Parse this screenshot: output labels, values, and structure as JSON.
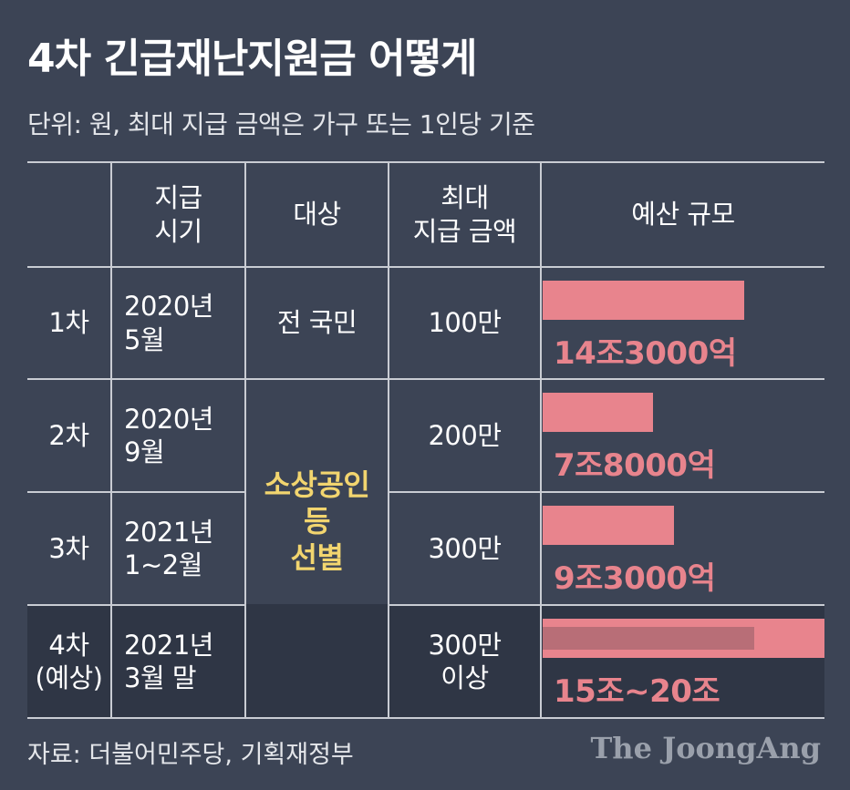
{
  "title": "4차 긴급재난지원금 어떻게",
  "subtitle": "단위: 원, 최대 지급 금액은 가구 또는 1인당 기준",
  "table": {
    "headers": [
      "",
      "지급\n시기",
      "대상",
      "최대\n지급 금액",
      "예산 규모"
    ],
    "rows": [
      {
        "round": "1차",
        "timing": "2020년\n5월",
        "target": "전 국민",
        "max_amount": "100만",
        "budget_label": "14조3000억"
      },
      {
        "round": "2차",
        "timing": "2020년\n9월",
        "target": "",
        "max_amount": "200만",
        "budget_label": "7조8000억"
      },
      {
        "round": "3차",
        "timing": "2021년\n1~2월",
        "target": "",
        "max_amount": "300만",
        "budget_label": "9조3000억"
      },
      {
        "round": "4차\n(예상)",
        "timing": "2021년\n3월 말",
        "target": "",
        "max_amount": "300만\n이상",
        "budget_label": "15조~20조"
      }
    ],
    "merged_target": "소상공인\n등\n선별"
  },
  "chart_data": {
    "type": "bar",
    "orientation": "horizontal",
    "categories": [
      "1차",
      "2차",
      "3차",
      "4차(예상)"
    ],
    "values": [
      14.3,
      7.8,
      9.3,
      20
    ],
    "range_low": [
      null,
      null,
      null,
      15
    ],
    "unit": "조",
    "value_labels": [
      "14조3000억",
      "7조8000억",
      "9조3000억",
      "15조~20조"
    ]
  },
  "source": "자료: 더불어민주당, 기획재정부",
  "logo": "The JoongAng",
  "colors": {
    "background": "#3c4455",
    "bar": "#e8848d",
    "bar_range_low": "#b86e77",
    "highlight_text": "#f2d56f",
    "row4_background": "#2f3645"
  }
}
